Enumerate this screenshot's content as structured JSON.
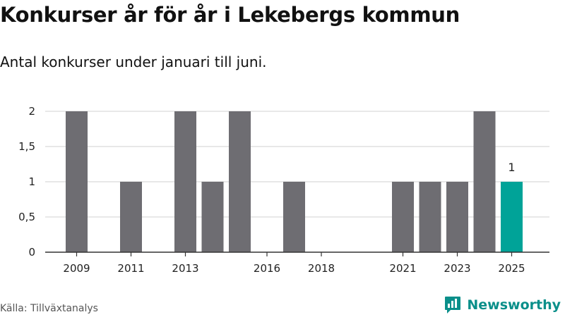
{
  "chart_data": {
    "type": "bar",
    "title": "Konkurser år för år i Lekebergs kommun",
    "subtitle": "Antal konkurser under januari till juni.",
    "x": [
      2009,
      2010,
      2011,
      2012,
      2013,
      2014,
      2015,
      2016,
      2017,
      2018,
      2019,
      2020,
      2021,
      2022,
      2023,
      2024,
      2025
    ],
    "values": [
      2,
      0,
      1,
      0,
      2,
      1,
      2,
      0,
      1,
      0,
      0,
      0,
      1,
      1,
      1,
      2,
      1
    ],
    "x_tick_labels": [
      "2009",
      "2011",
      "2013",
      "2016",
      "2018",
      "2021",
      "2023",
      "2025"
    ],
    "y_ticks": [
      0,
      0.5,
      1,
      1.5,
      2
    ],
    "y_tick_labels": [
      "0",
      "0,5",
      "1",
      "1,5",
      "2"
    ],
    "ylim": [
      0,
      2
    ],
    "grid": true,
    "highlight": {
      "x": 2025,
      "label": "1"
    },
    "colors": {
      "bar": "#6e6d72",
      "highlight": "#00a398",
      "grid": "#d9d9d9",
      "axis": "#333333"
    }
  },
  "source": "Källa: Tillväxtanalys",
  "brand": {
    "name": "Newsworthy",
    "icon": "newsworthy-logo-icon",
    "color": "#0a8f8a"
  }
}
